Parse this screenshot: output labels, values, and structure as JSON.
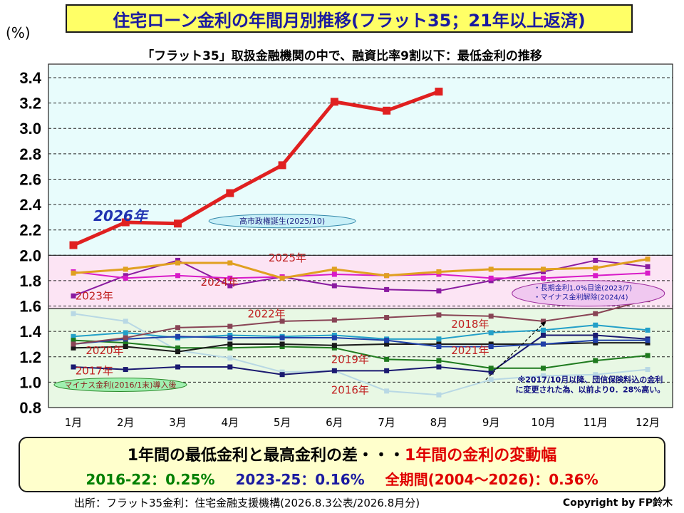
{
  "header": {
    "title": "住宅ローン金利の年間月別推移(フラット35；21年以上返済)",
    "subtitle": "「フラット35」取扱金融機関の中で、融資比率9割以下：最低金利の推移",
    "unit": "(%)"
  },
  "chart_data": {
    "type": "line",
    "categories": [
      "1月",
      "2月",
      "3月",
      "4月",
      "5月",
      "6月",
      "7月",
      "8月",
      "9月",
      "10月",
      "11月",
      "12月"
    ],
    "ylim": [
      0.8,
      3.4
    ],
    "yticks": [
      "0.8",
      "1.0",
      "1.2",
      "1.4",
      "1.6",
      "1.8",
      "2.0",
      "2.2",
      "2.4",
      "2.6",
      "2.8",
      "3.0",
      "3.2",
      "3.4"
    ],
    "grid": true,
    "bands": [
      {
        "from": 2.0,
        "to": 3.5,
        "color": "#e8fcfc"
      },
      {
        "from": 1.58,
        "to": 2.0,
        "color": "#fce4f4"
      },
      {
        "from": 0.8,
        "to": 1.58,
        "color": "#e8f8e4"
      }
    ],
    "series": [
      {
        "name": "2016年",
        "color": "#b8d8e4",
        "width": 2,
        "values": [
          1.54,
          1.48,
          1.25,
          1.19,
          1.08,
          1.09,
          0.93,
          0.9,
          1.02,
          1.05,
          1.06,
          1.1
        ]
      },
      {
        "name": "2017年",
        "color": "#1a1a70",
        "width": 2,
        "values": [
          1.12,
          1.1,
          1.12,
          1.12,
          1.06,
          1.09,
          1.09,
          1.12,
          1.08,
          1.37,
          1.37,
          1.34
        ]
      },
      {
        "name": "2018年",
        "color": "#23a0c8",
        "width": 2,
        "values": [
          1.36,
          1.39,
          1.35,
          1.37,
          1.36,
          1.37,
          1.34,
          1.34,
          1.39,
          1.41,
          1.45,
          1.41
        ]
      },
      {
        "name": "2019年",
        "color": "#1e7a1e",
        "width": 2,
        "values": [
          1.33,
          1.31,
          1.27,
          1.27,
          1.28,
          1.27,
          1.18,
          1.17,
          1.11,
          1.11,
          1.17,
          1.21
        ]
      },
      {
        "name": "2020年",
        "color": "#1a1a1a",
        "width": 2,
        "values": [
          1.27,
          1.28,
          1.24,
          1.3,
          1.3,
          1.29,
          1.3,
          1.3,
          1.3,
          1.3,
          1.31,
          1.31
        ]
      },
      {
        "name": "2021年",
        "color": "#2040a8",
        "width": 2,
        "values": [
          1.3,
          1.34,
          1.36,
          1.35,
          1.35,
          1.35,
          1.33,
          1.28,
          1.28,
          1.3,
          1.33,
          1.33
        ]
      },
      {
        "name": "2022年",
        "color": "#884455",
        "width": 2,
        "values": [
          1.3,
          1.35,
          1.43,
          1.44,
          1.48,
          1.49,
          1.51,
          1.53,
          1.52,
          1.48,
          1.54,
          1.65
        ]
      },
      {
        "name": "2023年",
        "color": "#8a1aa0",
        "width": 2,
        "values": [
          1.68,
          1.84,
          1.96,
          1.76,
          1.83,
          1.76,
          1.73,
          1.72,
          1.8,
          1.87,
          1.96,
          1.91
        ]
      },
      {
        "name": "2024年",
        "color": "#d81ac8",
        "width": 2,
        "values": [
          1.87,
          1.82,
          1.84,
          1.82,
          1.83,
          1.85,
          1.84,
          1.85,
          1.82,
          1.82,
          1.84,
          1.86
        ]
      },
      {
        "name": "2025年",
        "color": "#e0a020",
        "width": 3,
        "values": [
          1.86,
          1.89,
          1.94,
          1.94,
          1.82,
          1.89,
          1.84,
          1.87,
          1.89,
          1.89,
          1.9,
          1.97
        ]
      },
      {
        "name": "2026年",
        "color": "#e02020",
        "width": 5,
        "values": [
          2.08,
          2.26,
          2.25,
          2.49,
          2.71,
          3.21,
          3.14,
          3.29,
          null,
          null,
          null,
          null
        ]
      }
    ],
    "year_labels": [
      {
        "text": "2026年",
        "color": "#2033b0",
        "m": 1.9,
        "v": 2.27,
        "size": 20,
        "bold": true,
        "italic": true
      },
      {
        "text": "2025年",
        "color": "#c02020",
        "m": 5.1,
        "v": 1.95,
        "size": 15
      },
      {
        "text": "2024年",
        "color": "#c02020",
        "m": 3.8,
        "v": 1.76,
        "size": 15
      },
      {
        "text": "2023年",
        "color": "#c02020",
        "m": 1.4,
        "v": 1.65,
        "size": 15
      },
      {
        "text": "2022年",
        "color": "#c02020",
        "m": 4.7,
        "v": 1.51,
        "size": 15
      },
      {
        "text": "2018年",
        "color": "#c02020",
        "m": 8.6,
        "v": 1.43,
        "size": 15
      },
      {
        "text": "2020年",
        "color": "#c02020",
        "m": 1.6,
        "v": 1.22,
        "size": 15
      },
      {
        "text": "2021年",
        "color": "#c02020",
        "m": 8.6,
        "v": 1.22,
        "size": 15
      },
      {
        "text": "2019年",
        "color": "#c02020",
        "m": 6.3,
        "v": 1.15,
        "size": 15
      },
      {
        "text": "2017年",
        "color": "#c02020",
        "m": 1.4,
        "v": 1.06,
        "size": 15
      },
      {
        "text": "2016年",
        "color": "#c02020",
        "m": 6.3,
        "v": 0.91,
        "size": 15
      }
    ],
    "annotations": [
      {
        "text": "高市政権誕生(2025/10)",
        "type": "ellipse",
        "fill": "#c8f0f8",
        "stroke": "#3388aa",
        "color": "#202080",
        "m": 5.0,
        "v": 2.27,
        "w": 206,
        "h": 19
      },
      {
        "text": "マイナス金利(2016/1末)導入後",
        "type": "ellipse",
        "fill": "#a0f0b0",
        "stroke": "#2a8a2a",
        "color": "#8a1a1a",
        "m": 1.9,
        "v": 0.98,
        "w": 186,
        "h": 19
      }
    ],
    "ellipse_multi": {
      "lines": [
        "・長期金利1.0%目途(2023/7)",
        "・マイナス金利解除(2024/4)"
      ],
      "fill": "#f0c8f0",
      "stroke": "#a030a0",
      "color": "#2020a0",
      "m": 11.0,
      "v": 1.7,
      "w": 214,
      "h": 36
    },
    "note": {
      "lines": [
        "※2017/10月以降、団信保険料込の金利",
        "に変更された為、以前より0．28%高い。"
      ],
      "color": "#101080",
      "m": 10.9,
      "v": 1.0
    },
    "arrow": {
      "from": [
        8.9,
        1.02
      ],
      "to": [
        10.05,
        1.48
      ],
      "color": "#000000"
    }
  },
  "summary": {
    "line1_black": "1年間の最低金利と最高金利の差・・・",
    "line1_red": "1年間の金利の変動幅",
    "green": "2016-22：0.25%",
    "blue": "2023-25：0.16%",
    "red": "全期間(2004～2026)：0.36%"
  },
  "footer": {
    "source": "出所：フラット35金利：住宅金融支援機構(2026.8.3公表/2026.8月分)",
    "copyright": "Copyright by FP鈴木"
  }
}
